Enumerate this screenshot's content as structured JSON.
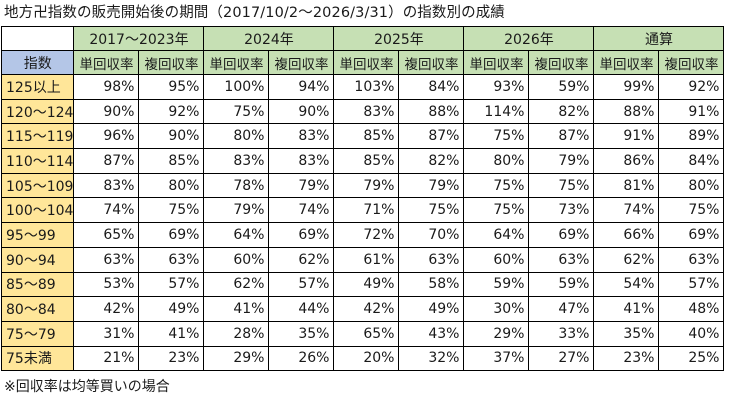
{
  "title": "地方卍指数の販売開始後の期間（2017/10/2～2026/3/31）の指数別の成績",
  "note": "※回収率は均等買いの場合",
  "table": {
    "index_header": "指数",
    "groups": [
      "2017～2023年",
      "2024年",
      "2025年",
      "2026年",
      "通算"
    ],
    "sub_headers": [
      "単回収率",
      "複回収率"
    ],
    "rows": [
      {
        "index": "125以上",
        "values": [
          "98%",
          "95%",
          "100%",
          "94%",
          "103%",
          "84%",
          "93%",
          "59%",
          "99%",
          "92%"
        ]
      },
      {
        "index": "120～124",
        "values": [
          "90%",
          "92%",
          "75%",
          "90%",
          "83%",
          "88%",
          "114%",
          "82%",
          "88%",
          "91%"
        ]
      },
      {
        "index": "115～119",
        "values": [
          "96%",
          "90%",
          "80%",
          "83%",
          "85%",
          "87%",
          "75%",
          "87%",
          "91%",
          "89%"
        ]
      },
      {
        "index": "110～114",
        "values": [
          "87%",
          "85%",
          "83%",
          "83%",
          "85%",
          "82%",
          "80%",
          "79%",
          "86%",
          "84%"
        ]
      },
      {
        "index": "105～109",
        "values": [
          "83%",
          "80%",
          "78%",
          "79%",
          "79%",
          "79%",
          "75%",
          "75%",
          "81%",
          "80%"
        ]
      },
      {
        "index": "100～104",
        "values": [
          "74%",
          "75%",
          "79%",
          "74%",
          "71%",
          "75%",
          "75%",
          "73%",
          "74%",
          "75%"
        ]
      },
      {
        "index": "95～99",
        "values": [
          "65%",
          "69%",
          "64%",
          "69%",
          "72%",
          "70%",
          "64%",
          "69%",
          "66%",
          "69%"
        ]
      },
      {
        "index": "90～94",
        "values": [
          "63%",
          "63%",
          "60%",
          "62%",
          "61%",
          "63%",
          "60%",
          "63%",
          "62%",
          "63%"
        ]
      },
      {
        "index": "85～89",
        "values": [
          "53%",
          "57%",
          "62%",
          "57%",
          "49%",
          "58%",
          "59%",
          "59%",
          "54%",
          "57%"
        ]
      },
      {
        "index": "80～84",
        "values": [
          "42%",
          "49%",
          "41%",
          "44%",
          "42%",
          "49%",
          "30%",
          "47%",
          "41%",
          "48%"
        ]
      },
      {
        "index": "75～79",
        "values": [
          "31%",
          "41%",
          "28%",
          "35%",
          "65%",
          "43%",
          "29%",
          "33%",
          "35%",
          "40%"
        ]
      },
      {
        "index": "75未満",
        "values": [
          "21%",
          "23%",
          "29%",
          "26%",
          "20%",
          "32%",
          "37%",
          "27%",
          "23%",
          "25%"
        ]
      }
    ]
  },
  "colors": {
    "header_green": "#c6e0b4",
    "index_header_blue": "#b4c6e7",
    "index_yellow": "#ffe699",
    "border": "#000000"
  }
}
